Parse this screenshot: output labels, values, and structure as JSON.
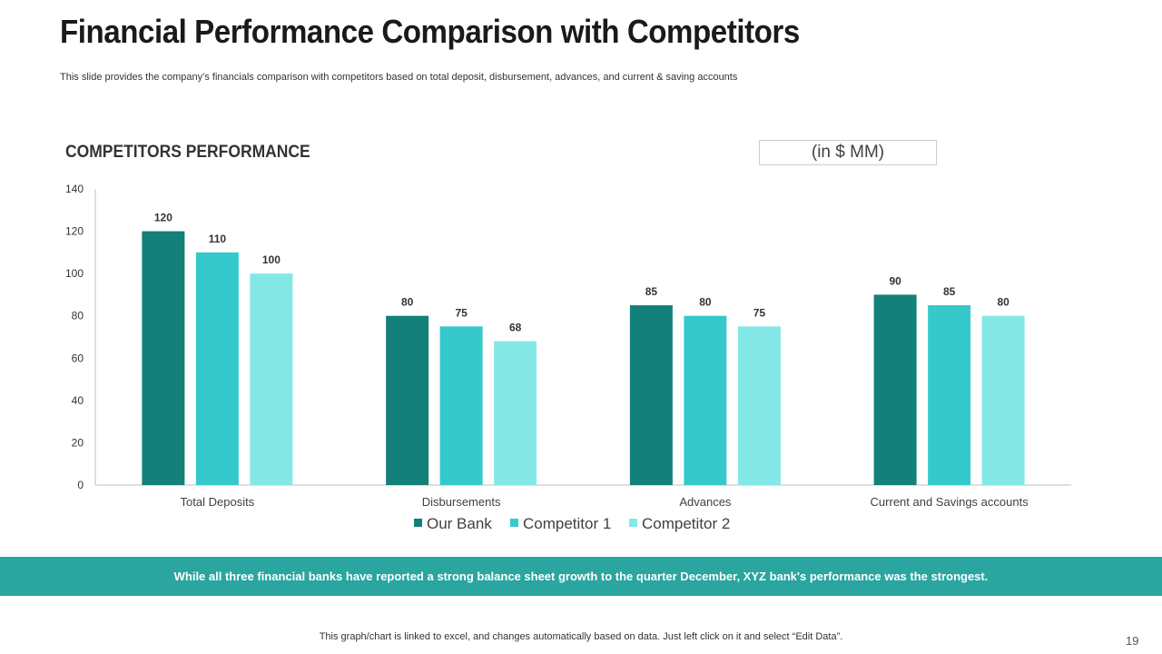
{
  "slide": {
    "title": "Financial Performance Comparison with Competitors",
    "subtitle": "This slide provides the company’s financials comparison with competitors based on total deposit, disbursement, advances, and current & saving accounts",
    "section_title": "COMPETITORS PERFORMANCE",
    "unit_label": "(in $ MM)",
    "banner_text": "While all three financial banks have reported a strong balance sheet growth to the quarter December, XYZ bank's performance was the strongest.",
    "footer_note": "This graph/chart is linked to excel, and changes automatically based on data. Just left click on it and select “Edit Data”.",
    "page_number": "19"
  },
  "colors": {
    "our_bank": "#138079",
    "competitor_1": "#35c9cc",
    "competitor_2": "#84e8e6",
    "banner": "#2aa5a0",
    "axis": "#bfbfbf"
  },
  "chart_data": {
    "type": "bar",
    "title": "COMPETITORS PERFORMANCE",
    "xlabel": "",
    "ylabel": "",
    "ylim": [
      0,
      140
    ],
    "yticks": [
      0,
      20,
      40,
      60,
      80,
      100,
      120,
      140
    ],
    "grid": false,
    "legend_position": "bottom",
    "categories": [
      "Total Deposits",
      "Disbursements",
      "Advances",
      "Current and Savings accounts"
    ],
    "series": [
      {
        "name": "Our Bank",
        "color": "#138079",
        "values": [
          120,
          80,
          85,
          90
        ]
      },
      {
        "name": "Competitor 1",
        "color": "#35c9cc",
        "values": [
          110,
          75,
          80,
          85
        ]
      },
      {
        "name": "Competitor 2",
        "color": "#84e8e6",
        "values": [
          100,
          68,
          75,
          80
        ]
      }
    ]
  }
}
